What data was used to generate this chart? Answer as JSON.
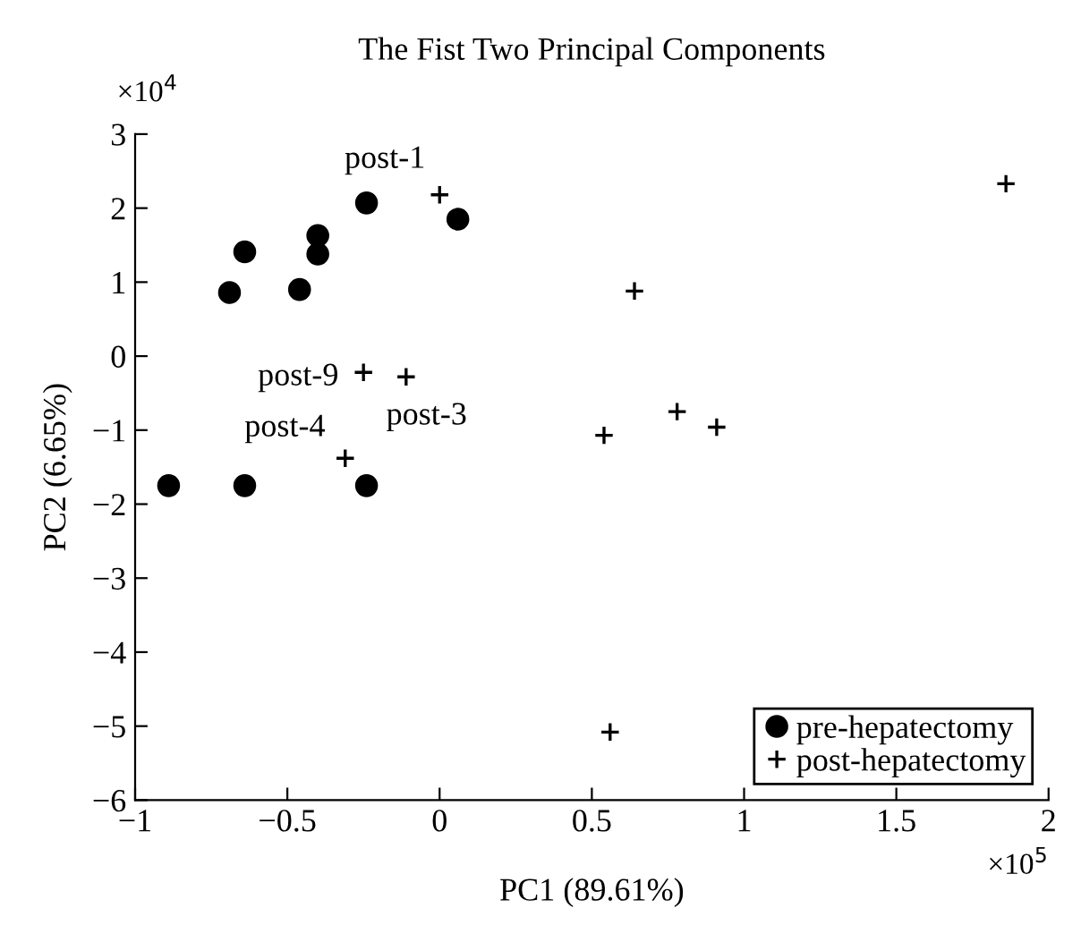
{
  "chart_data": {
    "type": "scatter",
    "title": "The Fist Two Principal Components",
    "xlabel": "PC1 (89.61%)",
    "ylabel": "PC2 (6.65%)",
    "series": [
      {
        "name": "pre-hepatectomy",
        "color": "#000000",
        "marker": "circle",
        "x": [
          -0.89,
          -0.64,
          -0.24,
          -0.69,
          -0.64,
          -0.46,
          -0.4,
          -0.4,
          -0.24,
          0.06
        ],
        "values": [
          -1.75,
          -1.75,
          -1.75,
          0.86,
          1.41,
          0.9,
          1.63,
          1.38,
          2.07,
          1.85
        ]
      },
      {
        "name": "post-hepatectomy",
        "color": "#000000",
        "marker": "cross",
        "x": [
          0,
          -0.25,
          -0.11,
          -0.31,
          1.86,
          0.64,
          0.78,
          0.91,
          0.54,
          0.56
        ],
        "values": [
          2.18,
          -0.22,
          -0.28,
          -1.38,
          2.33,
          0.88,
          -0.75,
          -0.96,
          -1.07,
          -5.08
        ]
      }
    ],
    "annotations": [
      {
        "text": "post-1",
        "x": 0,
        "y": 2.18
      },
      {
        "text": "post-9",
        "x": -0.25,
        "y": -0.22
      },
      {
        "text": "post-3",
        "x": -0.11,
        "y": -0.28
      },
      {
        "text": "post-4",
        "x": -0.31,
        "y": -1.38
      },
      "×10$^{5}$",
      "×10$^{4}$"
    ],
    "xlim": [
      -1,
      2
    ],
    "xticks": [
      {
        "value": -1,
        "label": "−1"
      },
      {
        "value": -0.5,
        "label": "−0.5"
      },
      0,
      0.5,
      1,
      1.5,
      2
    ],
    "ylim": [
      -6,
      3
    ],
    "yticks": [
      {
        "value": -6,
        "label": "−6"
      },
      {
        "value": -5,
        "label": "−5"
      },
      {
        "value": -4,
        "label": "−4"
      },
      {
        "value": -3,
        "label": "−3"
      },
      {
        "value": -2,
        "label": "−2"
      },
      {
        "value": -1,
        "label": "−1"
      },
      0,
      1,
      2,
      3
    ],
    "legend": "bottom right",
    "grid": false
  }
}
